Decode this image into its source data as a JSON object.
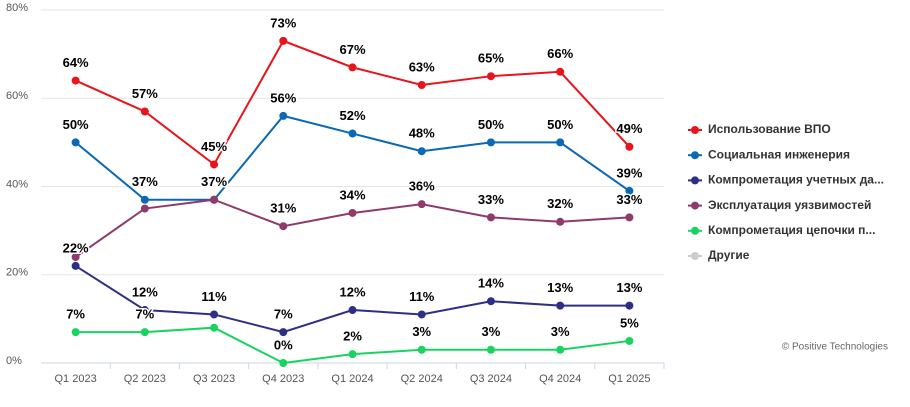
{
  "chart_data": {
    "type": "line",
    "categories": [
      "Q1 2023",
      "Q2 2023",
      "Q3 2023",
      "Q4 2023",
      "Q1 2024",
      "Q2 2024",
      "Q3 2024",
      "Q4 2024",
      "Q1 2025"
    ],
    "ylim": [
      0,
      80
    ],
    "yticks": [
      {
        "value": 0,
        "label": "0%"
      },
      {
        "value": 20,
        "label": "20%"
      },
      {
        "value": 40,
        "label": "40%"
      },
      {
        "value": 60,
        "label": "60%"
      },
      {
        "value": 80,
        "label": "80%"
      }
    ],
    "grid": true,
    "legend": "right",
    "series": [
      {
        "name": "Использование ВПО",
        "color": "#e8141c",
        "values": [
          64,
          57,
          45,
          73,
          67,
          63,
          65,
          66,
          49
        ],
        "value_labels": [
          "64%",
          "57%",
          "45%",
          "73%",
          "67%",
          "63%",
          "65%",
          "66%",
          "49%"
        ]
      },
      {
        "name": "Социальная инженерия",
        "color": "#0a68b4",
        "values": [
          50,
          37,
          37,
          56,
          52,
          48,
          50,
          50,
          39
        ],
        "value_labels": [
          "50%",
          "37%",
          "37%",
          "56%",
          "52%",
          "48%",
          "50%",
          "50%",
          "39%"
        ]
      },
      {
        "name": "Компрометация учетных да...",
        "color": "#2d2e86",
        "values": [
          22,
          12,
          11,
          7,
          12,
          11,
          14,
          13,
          13
        ],
        "value_labels": [
          "22%",
          "12%",
          "11%",
          "7%",
          "12%",
          "11%",
          "14%",
          "13%",
          "13%"
        ]
      },
      {
        "name": "Эксплуатация уязвимостей",
        "color": "#8e3b6c",
        "values": [
          24,
          35,
          37,
          31,
          34,
          36,
          33,
          32,
          33
        ],
        "value_labels": [
          null,
          null,
          null,
          "31%",
          "34%",
          "36%",
          "33%",
          "32%",
          "33%"
        ]
      },
      {
        "name": "Компрометация цепочки п...",
        "color": "#18d360",
        "values": [
          7,
          7,
          8,
          0,
          2,
          3,
          3,
          3,
          5
        ],
        "value_labels": [
          "7%",
          "7%",
          null,
          "0%",
          "2%",
          "3%",
          "3%",
          "3%",
          "5%"
        ]
      },
      {
        "name": "Другие",
        "color": "#cccccc",
        "hidden": true,
        "values": [
          null,
          null,
          null,
          null,
          null,
          null,
          null,
          null,
          null
        ]
      }
    ],
    "credit": "© Positive Technologies"
  }
}
